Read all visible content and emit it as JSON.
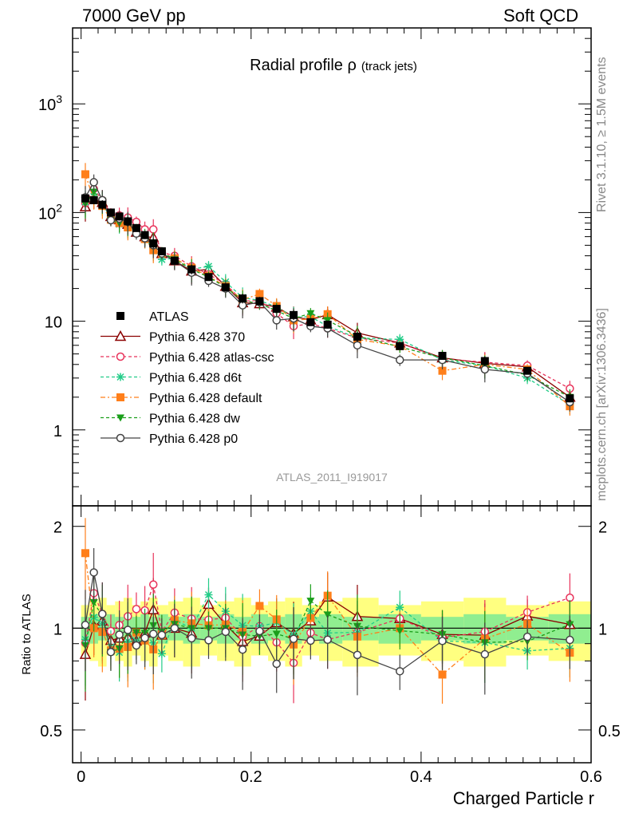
{
  "header": {
    "left": "7000 GeV pp",
    "right": "Soft QCD"
  },
  "side_labels": {
    "rivet": "Rivet 3.1.10, ≥ 1.5M events",
    "mcplots": "mcplots.cern.ch [arXiv:1306.3436]"
  },
  "chart_data": {
    "type": "line",
    "title_main": "Radial profile ρ",
    "title_sub": "(track jets)",
    "analysis_label": "ATLAS_2011_I919017",
    "xlabel": "Charged Particle r",
    "ylabel_ratio": "Ratio to ATLAS",
    "xlim": [
      -0.01,
      0.6
    ],
    "ylim_main": [
      0.2,
      5000
    ],
    "ylim_ratio": [
      0.4,
      2.3
    ],
    "yscale_main": "log",
    "yscale_ratio": "log",
    "x_ticks": [
      "0",
      "0.2",
      "0.4",
      "0.6"
    ],
    "y_ticks_main": [
      "1",
      "10",
      "10^2",
      "10^3"
    ],
    "y_ticks_ratio": [
      "0.5",
      "1",
      "2"
    ],
    "legend_position": "center-left",
    "x": [
      0.005,
      0.015,
      0.025,
      0.035,
      0.045,
      0.055,
      0.065,
      0.075,
      0.085,
      0.095,
      0.11,
      0.13,
      0.15,
      0.17,
      0.19,
      0.21,
      0.23,
      0.25,
      0.27,
      0.29,
      0.325,
      0.375,
      0.425,
      0.475,
      0.525,
      0.575
    ],
    "series": [
      {
        "name": "ATLAS",
        "color": "#000000",
        "marker": "square-filled",
        "dash": "none",
        "values": [
          135,
          130,
          118,
          100,
          92,
          83,
          72,
          62,
          52,
          44,
          36,
          30,
          25.5,
          20.5,
          16.2,
          15.3,
          13,
          11.4,
          9.8,
          9.3,
          7.2,
          5.9,
          4.8,
          4.3,
          3.5,
          1.95
        ]
      },
      {
        "name": "Pythia 6.428 370",
        "color": "#8b0000",
        "marker": "triangle-open",
        "dash": "none",
        "values": [
          113,
          132,
          124,
          92,
          86,
          78,
          66,
          60,
          59,
          42,
          36,
          29,
          30,
          21,
          14.8,
          14.5,
          13.5,
          11.0,
          10.3,
          11.5,
          7.8,
          6.3,
          4.6,
          4.1,
          3.8,
          2.0
        ]
      },
      {
        "name": "Pythia 6.428 atlas-csc",
        "color": "#e8325a",
        "marker": "circle-open",
        "dash": "4,3",
        "values": [
          122,
          165,
          130,
          98,
          94,
          90,
          82,
          70,
          70,
          43,
          40,
          32,
          27,
          22,
          15.3,
          15.5,
          11.8,
          9.0,
          9.5,
          8.6,
          7.0,
          6.3,
          4.5,
          4.2,
          3.9,
          2.4
        ]
      },
      {
        "name": "Pythia 6.428 d6t",
        "color": "#22cc88",
        "marker": "star",
        "dash": "4,3",
        "values": [
          125,
          140,
          122,
          88,
          78,
          76,
          66,
          57,
          47,
          37,
          38,
          30,
          32,
          23,
          16.5,
          15.5,
          13.5,
          10.9,
          11.0,
          9.0,
          7.0,
          6.8,
          4.4,
          3.9,
          3.0,
          1.7
        ]
      },
      {
        "name": "Pythia 6.428 default",
        "color": "#ff7f1a",
        "marker": "square-filled",
        "dash": "6,3,2,3",
        "values": [
          225,
          130,
          115,
          86,
          80,
          73,
          70,
          57,
          45,
          42,
          38,
          31,
          26,
          21,
          15.8,
          17.8,
          13.8,
          10.2,
          10.5,
          11.6,
          6.8,
          5.9,
          3.5,
          4.0,
          3.6,
          1.65
        ]
      },
      {
        "name": "Pythia 6.428 dw",
        "color": "#1a9e1a",
        "marker": "triangle-down-filled",
        "dash": "4,3",
        "values": [
          120,
          155,
          128,
          85,
          80,
          80,
          70,
          60,
          53,
          43,
          37,
          30,
          25.5,
          20.5,
          15.5,
          14.5,
          12.5,
          10.6,
          11.8,
          10.2,
          7.3,
          5.8,
          4.6,
          3.9,
          3.2,
          2.0
        ]
      },
      {
        "name": "Pythia 6.428 p0",
        "color": "#444444",
        "marker": "circle-open",
        "dash": "none",
        "values": [
          138,
          190,
          130,
          85,
          88,
          82,
          64,
          58,
          50,
          42,
          36,
          28,
          23.5,
          20,
          14,
          15,
          10.2,
          10.6,
          9.0,
          8.6,
          6.0,
          4.4,
          4.4,
          3.6,
          3.3,
          1.8
        ]
      }
    ]
  }
}
